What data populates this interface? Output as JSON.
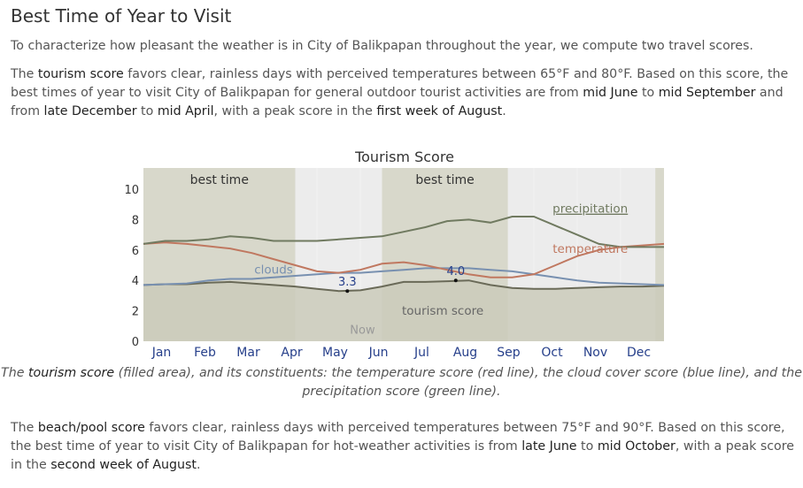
{
  "title": "Best Time of Year to Visit",
  "intro": "To characterize how pleasant the weather is in City of Balikpapan throughout the year, we compute two travel scores.",
  "tourism_para": {
    "s1": "The ",
    "h1": "tourism score",
    "s2": " favors clear, rainless days with perceived temperatures between 65°F and 80°F. Based on this score, the best times of year to visit City of Balikpapan for general outdoor tourist activities are from ",
    "h2": "mid June",
    "s3": " to ",
    "h3": "mid September",
    "s4": " and from ",
    "h4": "late December",
    "s5": " to ",
    "h5": "mid April",
    "s6": ", with a peak score in the ",
    "h6": "first week of August",
    "s7": "."
  },
  "caption": {
    "s1": "The ",
    "h1": "tourism score",
    "s2": " (filled area), and its constituents: the temperature score (red line), the cloud cover score (blue line), and the precipitation score (green line)."
  },
  "beach_para": {
    "s1": "The ",
    "h1": "beach/pool score",
    "s2": " favors clear, rainless days with perceived temperatures between 75°F and 90°F. Based on this score, the best time of year to visit City of Balikpapan for hot-weather activities is from ",
    "h2": "late June",
    "s3": " to ",
    "h3": "mid October",
    "s4": ", with a peak score in the ",
    "h4": "second week of August",
    "s5": "."
  },
  "colors": {
    "tourism_fill": "#cbcbbb",
    "best_time_band": "#d8d8cb",
    "plot_bg": "#ececec",
    "temperature": "#c07860",
    "clouds": "#7890b0",
    "precipitation": "#707a60",
    "month_label": "#27408b"
  },
  "chart_data": {
    "type": "area",
    "title": "Tourism Score",
    "ylim": [
      0,
      10
    ],
    "yticks": [
      "0",
      "2",
      "4",
      "6",
      "8",
      "10"
    ],
    "months": [
      "Jan",
      "Feb",
      "Mar",
      "Apr",
      "May",
      "Jun",
      "Jul",
      "Aug",
      "Sep",
      "Oct",
      "Nov",
      "Dec"
    ],
    "best_time": [
      {
        "label": "best time",
        "start": 0.0,
        "end": 3.5
      },
      {
        "label": "best time",
        "start": 5.5,
        "end": 8.4
      },
      {
        "label": "",
        "start": 11.8,
        "end": 12.0
      }
    ],
    "now_label": "Now",
    "now_x": 5.05,
    "series_labels": {
      "precipitation": "precipitation",
      "temperature": "temperature",
      "clouds": "clouds",
      "tourism": "tourism score"
    },
    "annotations": [
      {
        "label": "3.3",
        "x": 4.7,
        "y": 3.3
      },
      {
        "label": "4.0",
        "x": 7.2,
        "y": 4.0
      }
    ],
    "x": [
      0,
      0.5,
      1,
      1.5,
      2,
      2.5,
      3,
      3.5,
      4,
      4.5,
      5,
      5.5,
      6,
      6.5,
      7,
      7.5,
      8,
      8.5,
      9,
      9.5,
      10,
      10.5,
      11,
      11.5,
      12
    ],
    "series": [
      {
        "name": "tourism score",
        "values": [
          3.7,
          3.75,
          3.75,
          3.85,
          3.9,
          3.8,
          3.7,
          3.6,
          3.45,
          3.3,
          3.35,
          3.6,
          3.9,
          3.9,
          3.95,
          4.0,
          3.7,
          3.5,
          3.45,
          3.45,
          3.5,
          3.55,
          3.6,
          3.6,
          3.65
        ]
      },
      {
        "name": "temperature",
        "values": [
          6.4,
          6.5,
          6.4,
          6.25,
          6.1,
          5.8,
          5.4,
          5.0,
          4.6,
          4.5,
          4.7,
          5.1,
          5.2,
          5.0,
          4.7,
          4.4,
          4.2,
          4.2,
          4.4,
          5.0,
          5.6,
          6.0,
          6.2,
          6.3,
          6.4
        ]
      },
      {
        "name": "clouds",
        "values": [
          3.7,
          3.75,
          3.8,
          4.0,
          4.1,
          4.1,
          4.2,
          4.3,
          4.4,
          4.5,
          4.5,
          4.6,
          4.7,
          4.8,
          4.8,
          4.8,
          4.7,
          4.6,
          4.4,
          4.2,
          4.0,
          3.85,
          3.8,
          3.75,
          3.7
        ]
      },
      {
        "name": "precipitation",
        "values": [
          6.4,
          6.6,
          6.6,
          6.7,
          6.9,
          6.8,
          6.6,
          6.6,
          6.6,
          6.7,
          6.8,
          6.9,
          7.2,
          7.5,
          7.9,
          8.0,
          7.8,
          8.2,
          8.2,
          7.6,
          7.0,
          6.4,
          6.2,
          6.2,
          6.2
        ]
      }
    ]
  }
}
